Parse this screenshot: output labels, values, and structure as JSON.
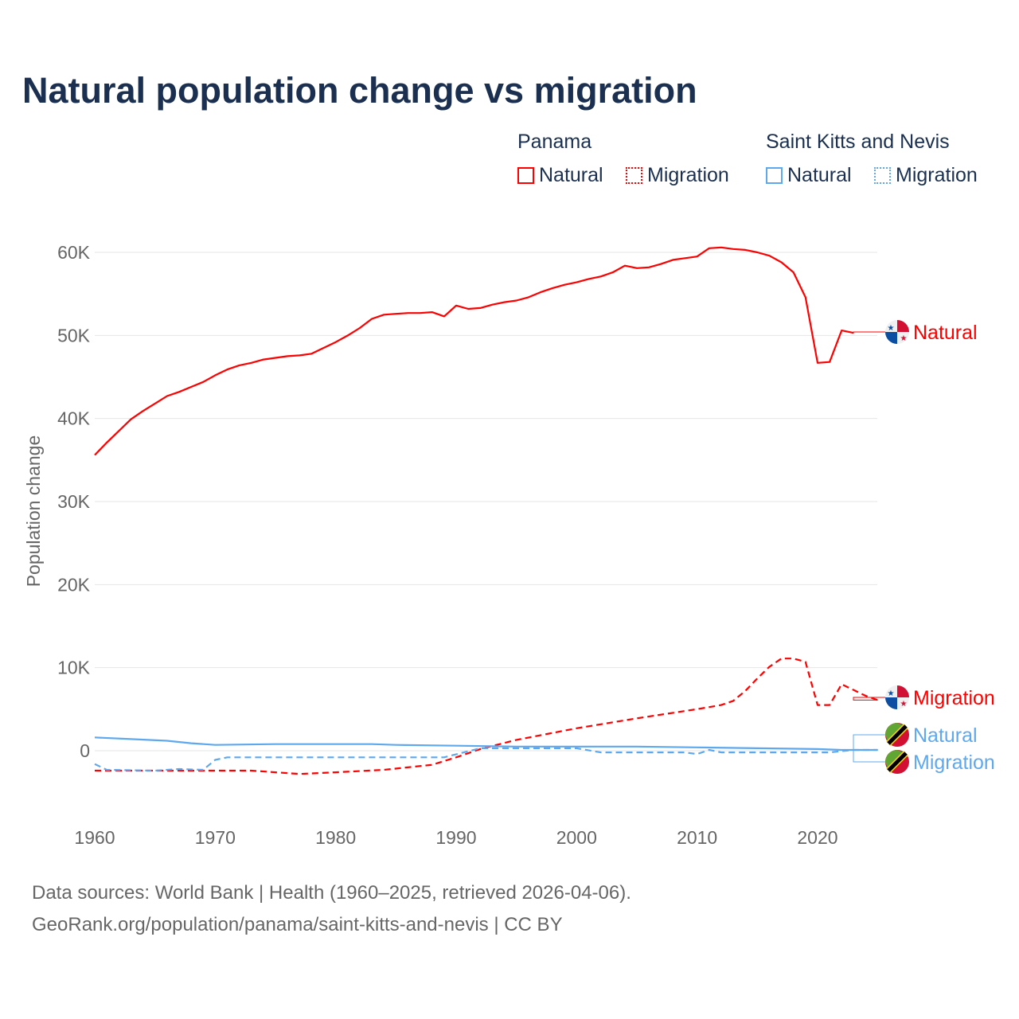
{
  "chart_data": {
    "type": "line",
    "title": "Natural population change vs migration",
    "xlabel": "",
    "ylabel": "Population change",
    "xlim": [
      1960,
      2025
    ],
    "ylim": [
      -5000,
      62000
    ],
    "yticks": [
      {
        "v": 0,
        "l": "0"
      },
      {
        "v": 10000,
        "l": "10K"
      },
      {
        "v": 20000,
        "l": "20K"
      },
      {
        "v": 30000,
        "l": "30K"
      },
      {
        "v": 40000,
        "l": "40K"
      },
      {
        "v": 50000,
        "l": "50K"
      },
      {
        "v": 60000,
        "l": "60K"
      }
    ],
    "xticks": [
      1960,
      1970,
      1980,
      1990,
      2000,
      2010,
      2020
    ],
    "legend": {
      "groups": [
        {
          "name": "Panama",
          "items": [
            "Natural",
            "Migration"
          ]
        },
        {
          "name": "Saint Kitts and Nevis",
          "items": [
            "Natural",
            "Migration"
          ]
        }
      ]
    },
    "series": [
      {
        "name": "Natural",
        "country": "Panama",
        "color": "#ff0000",
        "dash": false,
        "x": [
          1960,
          1961,
          1962,
          1963,
          1964,
          1965,
          1966,
          1967,
          1968,
          1969,
          1970,
          1971,
          1972,
          1973,
          1974,
          1975,
          1976,
          1977,
          1978,
          1979,
          1980,
          1981,
          1982,
          1983,
          1984,
          1985,
          1986,
          1987,
          1988,
          1989,
          1990,
          1991,
          1992,
          1993,
          1994,
          1995,
          1996,
          1997,
          1998,
          1999,
          2000,
          2001,
          2002,
          2003,
          2004,
          2005,
          2006,
          2007,
          2008,
          2009,
          2010,
          2011,
          2012,
          2013,
          2014,
          2015,
          2016,
          2017,
          2018,
          2019,
          2020,
          2021,
          2022,
          2023
        ],
        "y": [
          35600,
          37100,
          38500,
          39900,
          40900,
          41800,
          42700,
          43200,
          43800,
          44400,
          45200,
          45900,
          46400,
          46700,
          47100,
          47300,
          47500,
          47600,
          47800,
          48500,
          49200,
          50000,
          50900,
          52000,
          52500,
          52600,
          52700,
          52700,
          52800,
          52300,
          53600,
          53200,
          53300,
          53700,
          54000,
          54200,
          54600,
          55200,
          55700,
          56100,
          56400,
          56800,
          57100,
          57600,
          58400,
          58100,
          58200,
          58600,
          59100,
          59300,
          59500,
          60500,
          60600,
          60400,
          60300,
          60000,
          59600,
          58800,
          57600,
          54600,
          46700,
          46800,
          50600,
          50300
        ],
        "label": "Natural",
        "labelValue": 50300
      },
      {
        "name": "Migration",
        "country": "Panama",
        "color": "#ff0000",
        "dash": true,
        "x": [
          1960,
          1965,
          1970,
          1973,
          1977,
          1980,
          1984,
          1988,
          1990,
          1992,
          1995,
          2000,
          2005,
          2010,
          2012,
          2013,
          2014,
          2015,
          2016,
          2017,
          2018,
          2019,
          2020,
          2021,
          2022,
          2023,
          2024,
          2025
        ],
        "y": [
          -2400,
          -2400,
          -2400,
          -2400,
          -2800,
          -2600,
          -2300,
          -1700,
          -800,
          200,
          1300,
          2700,
          3900,
          5000,
          5500,
          6000,
          7200,
          8700,
          10100,
          11100,
          11100,
          10700,
          5500,
          5500,
          8000,
          7300,
          6600,
          6100
        ],
        "label": "Migration",
        "labelValue": 6400
      },
      {
        "name": "Natural",
        "country": "Saint Kitts and Nevis",
        "color": "#5ea8ee",
        "dash": false,
        "x": [
          1960,
          1963,
          1966,
          1968,
          1970,
          1975,
          1980,
          1983,
          1985,
          1990,
          1995,
          2000,
          2005,
          2010,
          2015,
          2020,
          2022,
          2025
        ],
        "y": [
          1600,
          1400,
          1200,
          900,
          700,
          800,
          800,
          800,
          700,
          600,
          500,
          500,
          500,
          400,
          300,
          200,
          100,
          100
        ],
        "label": "Natural",
        "labelValue": 1800
      },
      {
        "name": "Migration",
        "country": "Saint Kitts and Nevis",
        "color": "#5ea8ee",
        "dash": true,
        "x": [
          1960,
          1961,
          1965,
          1967,
          1969,
          1970,
          1971,
          1980,
          1985,
          1989,
          1992,
          2000,
          2002,
          2009,
          2010,
          2011,
          2012,
          2021,
          2023,
          2025
        ],
        "y": [
          -1600,
          -2300,
          -2400,
          -2200,
          -2300,
          -1100,
          -800,
          -800,
          -800,
          -800,
          300,
          300,
          -200,
          -200,
          -400,
          100,
          -200,
          -200,
          100,
          100
        ],
        "label": "Migration",
        "labelValue": -1500
      }
    ],
    "colors": {
      "panama": "#ff0000",
      "skn": "#5ea8ee"
    }
  },
  "footer": {
    "line1": "Data sources: World Bank | Health (1960–2025, retrieved 2026-04-06).",
    "line2": "GeoRank.org/population/panama/saint-kitts-and-nevis | CC BY"
  }
}
